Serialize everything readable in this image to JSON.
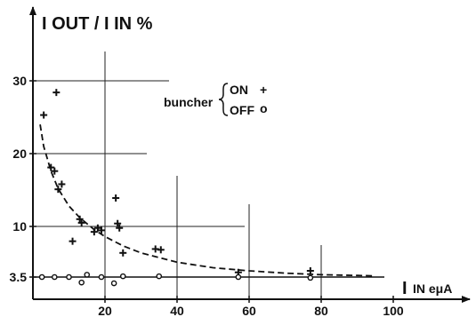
{
  "chart_data": {
    "type": "scatter",
    "y_axis_title": "I OUT / I IN %",
    "x_axis_title": "IN eμA",
    "x_axis_title_bar": "I",
    "xlim": [
      0,
      104
    ],
    "ylim": [
      3.0,
      36
    ],
    "x_ticks": [
      {
        "value": 20,
        "label": "20"
      },
      {
        "value": 40,
        "label": "40"
      },
      {
        "value": 60,
        "label": "60"
      },
      {
        "value": 80,
        "label": "80"
      },
      {
        "value": 100,
        "label": "100"
      }
    ],
    "y_ticks": [
      {
        "value": 3.5,
        "label": "3.5"
      },
      {
        "value": 10,
        "label": "10"
      },
      {
        "value": 20,
        "label": "20"
      },
      {
        "value": 30,
        "label": "30"
      }
    ],
    "legend": {
      "group_label": "buncher",
      "entries": [
        {
          "label": "ON",
          "marker": "+"
        },
        {
          "label": "OFF",
          "marker": "o"
        }
      ]
    },
    "series": [
      {
        "name": "ON",
        "marker": "plus",
        "points": [
          [
            3,
            25.3
          ],
          [
            5,
            18.1
          ],
          [
            6,
            17.6
          ],
          [
            6.5,
            28.4
          ],
          [
            7,
            15.1
          ],
          [
            8,
            15.8
          ],
          [
            11,
            8.1
          ],
          [
            13,
            11.0
          ],
          [
            13.5,
            10.5
          ],
          [
            17,
            9.3
          ],
          [
            18,
            9.8
          ],
          [
            19,
            9.5
          ],
          [
            23,
            13.9
          ],
          [
            23.5,
            10.4
          ],
          [
            24,
            9.8
          ],
          [
            25,
            6.6
          ],
          [
            34,
            7.1
          ],
          [
            35.5,
            7.0
          ],
          [
            57,
            4.1
          ],
          [
            77,
            4.3
          ]
        ]
      },
      {
        "name": "OFF",
        "marker": "circle",
        "points": [
          [
            2.5,
            3.5
          ],
          [
            6,
            3.5
          ],
          [
            10,
            3.5
          ],
          [
            13.5,
            2.8
          ],
          [
            15,
            3.8
          ],
          [
            19,
            3.5
          ],
          [
            22.5,
            2.7
          ],
          [
            25,
            3.6
          ],
          [
            35,
            3.6
          ],
          [
            57,
            3.5
          ],
          [
            77,
            3.4
          ]
        ]
      }
    ],
    "fit_curve": {
      "style": "dashed",
      "points": [
        [
          2,
          24.0
        ],
        [
          3,
          21.0
        ],
        [
          5,
          17.6
        ],
        [
          7,
          15.2
        ],
        [
          10,
          12.8
        ],
        [
          13,
          11.2
        ],
        [
          17,
          9.6
        ],
        [
          20,
          8.7
        ],
        [
          25,
          7.5
        ],
        [
          30,
          6.6
        ],
        [
          40,
          5.4
        ],
        [
          50,
          4.7
        ],
        [
          60,
          4.3
        ],
        [
          70,
          4.0
        ],
        [
          80,
          3.8
        ],
        [
          90,
          3.7
        ],
        [
          95,
          3.65
        ]
      ]
    },
    "baseline_value": 3.5,
    "grid": "partial"
  }
}
